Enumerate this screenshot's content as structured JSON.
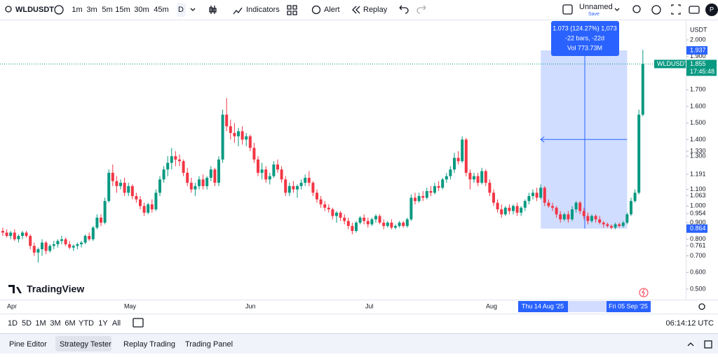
{
  "toolbar": {
    "symbol": "WLDUSDT",
    "intervals": [
      "1m",
      "3m",
      "5m",
      "15m",
      "30m",
      "45m",
      "D"
    ],
    "indicators": "Indicators",
    "alert": "Alert",
    "replay": "Replay",
    "layout_name": "Unnamed",
    "layout_status": "Save",
    "avatar": "P"
  },
  "chart": {
    "currency": "USDT",
    "logo": "TradingView",
    "price_ticks": [
      {
        "value": 2,
        "label": "2.000"
      },
      {
        "value": 1.9,
        "label": "1.900"
      },
      {
        "value": 1.7,
        "label": "1.700"
      },
      {
        "value": 1.6,
        "label": "1.600"
      },
      {
        "value": 1.5,
        "label": "1.500"
      },
      {
        "value": 1.4,
        "label": "1.400"
      },
      {
        "value": 1.33,
        "label": "1.330"
      },
      {
        "value": 1.3,
        "label": "1.300"
      },
      {
        "value": 1.191,
        "label": "1.191"
      },
      {
        "value": 1.1,
        "label": "1.100"
      },
      {
        "value": 1.063,
        "label": "1.063"
      },
      {
        "value": 1,
        "label": "1.000"
      },
      {
        "value": 0.954,
        "label": "0.954"
      },
      {
        "value": 0.9,
        "label": "0.900"
      },
      {
        "value": 0.8,
        "label": "0.800"
      },
      {
        "value": 0.761,
        "label": "0.761"
      },
      {
        "value": 0.7,
        "label": "0.700"
      },
      {
        "value": 0.6,
        "label": "0.600"
      },
      {
        "value": 0.5,
        "label": "0.500"
      }
    ],
    "months": [
      "Apr",
      "May",
      "Jun",
      "Jul",
      "Aug"
    ],
    "last_price": {
      "value": 1.855,
      "label": "1.855",
      "symbol": "WLDUSDT",
      "countdown": "17:45:48"
    },
    "measure": {
      "high": {
        "value": 1.937,
        "label": "1.937"
      },
      "low": {
        "value": 0.864,
        "label": "0.864"
      },
      "change": "1.073 (124.27%) 1,073",
      "bars": "-22 bars, -22d",
      "volume": "Vol 773.73M",
      "start_date": "Thu 14 Aug '25",
      "end_date": "Fri 05 Sep '25"
    },
    "candles": [
      [
        0.85,
        0.87,
        0.82,
        0.84
      ],
      [
        0.84,
        0.86,
        0.81,
        0.82
      ],
      [
        0.82,
        0.85,
        0.8,
        0.84
      ],
      [
        0.84,
        0.86,
        0.79,
        0.8
      ],
      [
        0.8,
        0.83,
        0.78,
        0.82
      ],
      [
        0.82,
        0.85,
        0.8,
        0.84
      ],
      [
        0.84,
        0.85,
        0.81,
        0.82
      ],
      [
        0.82,
        0.83,
        0.74,
        0.76
      ],
      [
        0.76,
        0.78,
        0.7,
        0.72
      ],
      [
        0.72,
        0.75,
        0.66,
        0.74
      ],
      [
        0.74,
        0.8,
        0.7,
        0.78
      ],
      [
        0.78,
        0.79,
        0.71,
        0.73
      ],
      [
        0.73,
        0.77,
        0.72,
        0.76
      ],
      [
        0.76,
        0.79,
        0.74,
        0.77
      ],
      [
        0.77,
        0.8,
        0.75,
        0.79
      ],
      [
        0.79,
        0.82,
        0.77,
        0.8
      ],
      [
        0.8,
        0.81,
        0.76,
        0.77
      ],
      [
        0.77,
        0.79,
        0.74,
        0.75
      ],
      [
        0.75,
        0.77,
        0.73,
        0.76
      ],
      [
        0.76,
        0.78,
        0.74,
        0.77
      ],
      [
        0.77,
        0.79,
        0.75,
        0.78
      ],
      [
        0.78,
        0.83,
        0.77,
        0.82
      ],
      [
        0.82,
        0.84,
        0.79,
        0.8
      ],
      [
        0.8,
        0.88,
        0.79,
        0.87
      ],
      [
        0.87,
        0.95,
        0.86,
        0.93
      ],
      [
        0.93,
        0.95,
        0.88,
        0.9
      ],
      [
        0.9,
        1.05,
        0.89,
        1.03
      ],
      [
        1.03,
        1.22,
        1.02,
        1.2
      ],
      [
        1.2,
        1.25,
        1.12,
        1.15
      ],
      [
        1.15,
        1.18,
        1.08,
        1.12
      ],
      [
        1.12,
        1.16,
        1.1,
        1.14
      ],
      [
        1.14,
        1.17,
        1.06,
        1.08
      ],
      [
        1.08,
        1.14,
        1.06,
        1.12
      ],
      [
        1.12,
        1.13,
        1.04,
        1.06
      ],
      [
        1.06,
        1.08,
        1.02,
        1.04
      ],
      [
        1.04,
        1.06,
        0.98,
        1.0
      ],
      [
        1.0,
        1.02,
        0.94,
        0.96
      ],
      [
        0.96,
        1.02,
        0.95,
        1.01
      ],
      [
        1.01,
        1.04,
        0.96,
        0.98
      ],
      [
        0.98,
        1.1,
        0.97,
        1.08
      ],
      [
        1.08,
        1.18,
        1.06,
        1.16
      ],
      [
        1.16,
        1.24,
        1.14,
        1.22
      ],
      [
        1.22,
        1.3,
        1.18,
        1.26
      ],
      [
        1.26,
        1.35,
        1.22,
        1.3
      ],
      [
        1.3,
        1.33,
        1.24,
        1.28
      ],
      [
        1.28,
        1.31,
        1.24,
        1.27
      ],
      [
        1.27,
        1.28,
        1.18,
        1.2
      ],
      [
        1.2,
        1.23,
        1.12,
        1.14
      ],
      [
        1.14,
        1.17,
        1.08,
        1.1
      ],
      [
        1.1,
        1.14,
        1.06,
        1.12
      ],
      [
        1.12,
        1.18,
        1.1,
        1.16
      ],
      [
        1.16,
        1.19,
        1.1,
        1.12
      ],
      [
        1.12,
        1.18,
        1.1,
        1.17
      ],
      [
        1.17,
        1.24,
        1.15,
        1.22
      ],
      [
        1.22,
        1.23,
        1.12,
        1.14
      ],
      [
        1.14,
        1.3,
        1.12,
        1.28
      ],
      [
        1.28,
        1.58,
        1.26,
        1.55
      ],
      [
        1.55,
        1.65,
        1.45,
        1.48
      ],
      [
        1.48,
        1.52,
        1.4,
        1.44
      ],
      [
        1.44,
        1.5,
        1.38,
        1.42
      ],
      [
        1.42,
        1.47,
        1.36,
        1.45
      ],
      [
        1.45,
        1.48,
        1.37,
        1.4
      ],
      [
        1.4,
        1.44,
        1.36,
        1.42
      ],
      [
        1.42,
        1.43,
        1.33,
        1.35
      ],
      [
        1.35,
        1.38,
        1.26,
        1.28
      ],
      [
        1.28,
        1.3,
        1.18,
        1.2
      ],
      [
        1.2,
        1.26,
        1.16,
        1.22
      ],
      [
        1.22,
        1.24,
        1.14,
        1.16
      ],
      [
        1.16,
        1.2,
        1.13,
        1.18
      ],
      [
        1.18,
        1.27,
        1.17,
        1.25
      ],
      [
        1.25,
        1.28,
        1.2,
        1.22
      ],
      [
        1.22,
        1.24,
        1.14,
        1.16
      ],
      [
        1.16,
        1.18,
        1.06,
        1.08
      ],
      [
        1.08,
        1.14,
        1.06,
        1.12
      ],
      [
        1.12,
        1.15,
        1.08,
        1.1
      ],
      [
        1.1,
        1.13,
        1.05,
        1.12
      ],
      [
        1.12,
        1.16,
        1.1,
        1.14
      ],
      [
        1.14,
        1.19,
        1.12,
        1.17
      ],
      [
        1.17,
        1.21,
        1.12,
        1.14
      ],
      [
        1.14,
        1.15,
        1.06,
        1.08
      ],
      [
        1.08,
        1.1,
        1.02,
        1.04
      ],
      [
        1.04,
        1.06,
        0.99,
        1.01
      ],
      [
        1.01,
        1.03,
        0.97,
        0.99
      ],
      [
        0.99,
        1.01,
        0.96,
        0.98
      ],
      [
        0.98,
        0.99,
        0.92,
        0.94
      ],
      [
        0.94,
        0.97,
        0.9,
        0.96
      ],
      [
        0.96,
        0.97,
        0.91,
        0.93
      ],
      [
        0.93,
        0.95,
        0.89,
        0.91
      ],
      [
        0.91,
        0.93,
        0.86,
        0.88
      ],
      [
        0.88,
        0.9,
        0.83,
        0.85
      ],
      [
        0.85,
        0.91,
        0.84,
        0.9
      ],
      [
        0.9,
        0.94,
        0.89,
        0.93
      ],
      [
        0.93,
        0.95,
        0.89,
        0.91
      ],
      [
        0.91,
        0.93,
        0.87,
        0.89
      ],
      [
        0.89,
        0.93,
        0.88,
        0.92
      ],
      [
        0.92,
        0.95,
        0.9,
        0.94
      ],
      [
        0.94,
        0.95,
        0.89,
        0.9
      ],
      [
        0.9,
        0.92,
        0.86,
        0.88
      ],
      [
        0.88,
        0.91,
        0.87,
        0.9
      ],
      [
        0.9,
        0.92,
        0.86,
        0.87
      ],
      [
        0.87,
        0.89,
        0.86,
        0.88
      ],
      [
        0.88,
        0.91,
        0.87,
        0.9
      ],
      [
        0.9,
        0.91,
        0.87,
        0.88
      ],
      [
        0.88,
        0.93,
        0.87,
        0.92
      ],
      [
        0.92,
        1.07,
        0.91,
        1.05
      ],
      [
        1.05,
        1.08,
        1.01,
        1.03
      ],
      [
        1.03,
        1.08,
        1.02,
        1.06
      ],
      [
        1.06,
        1.09,
        1.03,
        1.05
      ],
      [
        1.05,
        1.11,
        1.04,
        1.09
      ],
      [
        1.09,
        1.12,
        1.06,
        1.08
      ],
      [
        1.08,
        1.14,
        1.07,
        1.12
      ],
      [
        1.12,
        1.15,
        1.09,
        1.11
      ],
      [
        1.11,
        1.17,
        1.1,
        1.16
      ],
      [
        1.16,
        1.2,
        1.14,
        1.18
      ],
      [
        1.18,
        1.24,
        1.16,
        1.22
      ],
      [
        1.22,
        1.32,
        1.2,
        1.29
      ],
      [
        1.29,
        1.33,
        1.25,
        1.27
      ],
      [
        1.27,
        1.42,
        1.26,
        1.4
      ],
      [
        1.4,
        1.41,
        1.18,
        1.2
      ],
      [
        1.2,
        1.22,
        1.1,
        1.16
      ],
      [
        1.16,
        1.2,
        1.14,
        1.18
      ],
      [
        1.18,
        1.2,
        1.12,
        1.14
      ],
      [
        1.14,
        1.23,
        1.13,
        1.21
      ],
      [
        1.21,
        1.22,
        1.12,
        1.14
      ],
      [
        1.14,
        1.16,
        1.06,
        1.08
      ],
      [
        1.08,
        1.1,
        1.0,
        1.02
      ],
      [
        1.02,
        1.04,
        0.96,
        0.98
      ],
      [
        0.98,
        1.01,
        0.93,
        0.95
      ],
      [
        0.95,
        1.0,
        0.94,
        0.99
      ],
      [
        0.99,
        1.01,
        0.95,
        0.97
      ],
      [
        0.97,
        1.01,
        0.95,
        1.0
      ],
      [
        1.0,
        1.02,
        0.94,
        0.96
      ],
      [
        0.96,
        1.0,
        0.94,
        0.99
      ],
      [
        0.99,
        1.04,
        0.97,
        1.03
      ],
      [
        1.03,
        1.08,
        1.01,
        1.06
      ],
      [
        1.06,
        1.1,
        1.04,
        1.08
      ],
      [
        1.08,
        1.11,
        1.03,
        1.05
      ],
      [
        1.05,
        1.13,
        1.04,
        1.11
      ],
      [
        1.11,
        1.12,
        1.0,
        1.02
      ],
      [
        1.02,
        1.04,
        0.99,
        1.0
      ],
      [
        1.0,
        1.02,
        0.97,
        0.99
      ],
      [
        0.99,
        1.0,
        0.93,
        0.95
      ],
      [
        0.95,
        0.97,
        0.9,
        0.92
      ],
      [
        0.92,
        0.96,
        0.91,
        0.95
      ],
      [
        0.95,
        0.97,
        0.9,
        0.92
      ],
      [
        0.92,
        1.0,
        0.91,
        0.98
      ],
      [
        0.98,
        1.03,
        0.96,
        1.02
      ],
      [
        1.02,
        1.03,
        0.95,
        0.97
      ],
      [
        0.97,
        0.99,
        0.92,
        0.94
      ],
      [
        0.94,
        0.96,
        0.89,
        0.91
      ],
      [
        0.91,
        0.95,
        0.9,
        0.94
      ],
      [
        0.94,
        0.95,
        0.9,
        0.92
      ],
      [
        0.92,
        0.94,
        0.89,
        0.9
      ],
      [
        0.9,
        0.91,
        0.87,
        0.89
      ],
      [
        0.89,
        0.9,
        0.87,
        0.88
      ],
      [
        0.88,
        0.89,
        0.86,
        0.87
      ],
      [
        0.87,
        0.9,
        0.86,
        0.89
      ],
      [
        0.89,
        0.9,
        0.87,
        0.88
      ],
      [
        0.88,
        0.91,
        0.87,
        0.9
      ],
      [
        0.9,
        0.96,
        0.89,
        0.95
      ],
      [
        0.95,
        1.05,
        0.94,
        1.03
      ],
      [
        1.03,
        1.1,
        1.02,
        1.08
      ],
      [
        1.08,
        1.58,
        1.07,
        1.55
      ],
      [
        1.55,
        1.94,
        1.54,
        1.855
      ]
    ]
  },
  "range_bar": {
    "ranges": [
      "1D",
      "5D",
      "1M",
      "3M",
      "6M",
      "YTD",
      "1Y",
      "All"
    ],
    "clock": "06:14:12 UTC"
  },
  "tabs": [
    "Pine Editor",
    "Strategy Tester",
    "Replay Trading",
    "Trading Panel"
  ]
}
